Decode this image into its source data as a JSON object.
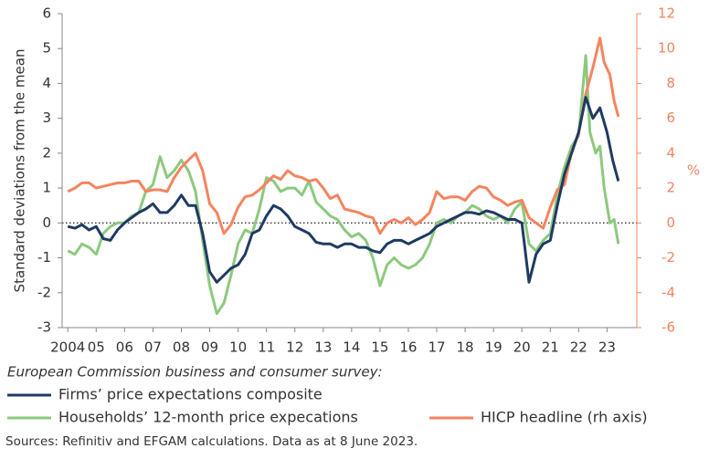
{
  "chart_data": {
    "type": "line",
    "y_label": "Standard deviations from the mean",
    "y2_label": "%",
    "note": "European Commission business and consumer survey:",
    "source": "Sources: Refinitiv and EFGAM calculations. Data as at 8 June 2023.",
    "xlim": [
      2003.8,
      2024.05
    ],
    "xticks": [
      2004,
      {
        "value": 2005,
        "label": "05"
      },
      {
        "value": 2006,
        "label": "06"
      },
      {
        "value": 2007,
        "label": "07"
      },
      {
        "value": 2008,
        "label": "08"
      },
      {
        "value": 2009,
        "label": "09"
      },
      {
        "value": 2010,
        "label": "10"
      },
      {
        "value": 2011,
        "label": "11"
      },
      {
        "value": 2012,
        "label": "12"
      },
      {
        "value": 2013,
        "label": "13"
      },
      {
        "value": 2014,
        "label": "14"
      },
      {
        "value": 2015,
        "label": "15"
      },
      {
        "value": 2016,
        "label": "16"
      },
      {
        "value": 2017,
        "label": "17"
      },
      {
        "value": 2018,
        "label": "18"
      },
      {
        "value": 2019,
        "label": "19"
      },
      {
        "value": 2020,
        "label": "20"
      },
      {
        "value": 2021,
        "label": "21"
      },
      {
        "value": 2022,
        "label": "22"
      },
      {
        "value": 2023,
        "label": "23"
      }
    ],
    "ylim": [
      -3,
      6
    ],
    "yticks": [
      -3,
      -2,
      -1,
      0,
      1,
      2,
      3,
      4,
      5,
      6
    ],
    "y2lim": [
      -6,
      12
    ],
    "y2ticks": [
      -6,
      -4,
      -2,
      0,
      2,
      4,
      6,
      8,
      10,
      12
    ],
    "series": [
      {
        "name": "Firms’ price expectations composite",
        "color": "#1f3a63",
        "x": [
          2004,
          2004.25,
          2004.5,
          2004.75,
          2005,
          2005.25,
          2005.5,
          2005.75,
          2006,
          2006.25,
          2006.5,
          2006.75,
          2007,
          2007.25,
          2007.5,
          2007.75,
          2008,
          2008.25,
          2008.5,
          2008.75,
          2009,
          2009.25,
          2009.5,
          2009.75,
          2010,
          2010.25,
          2010.5,
          2010.75,
          2011,
          2011.25,
          2011.5,
          2011.75,
          2012,
          2012.25,
          2012.5,
          2012.75,
          2013,
          2013.25,
          2013.5,
          2013.75,
          2014,
          2014.25,
          2014.5,
          2014.75,
          2015,
          2015.25,
          2015.5,
          2015.75,
          2016,
          2016.25,
          2016.5,
          2016.75,
          2017,
          2017.25,
          2017.5,
          2017.75,
          2018,
          2018.25,
          2018.5,
          2018.75,
          2019,
          2019.25,
          2019.5,
          2019.75,
          2020,
          2020.25,
          2020.5,
          2020.75,
          2021,
          2021.25,
          2021.5,
          2021.75,
          2022,
          2022.25,
          2022.5,
          2022.75,
          2023,
          2023.2,
          2023.4
        ],
        "values": [
          -0.1,
          -0.15,
          -0.05,
          -0.2,
          -0.1,
          -0.45,
          -0.5,
          -0.2,
          0,
          0.15,
          0.3,
          0.4,
          0.55,
          0.3,
          0.3,
          0.5,
          0.8,
          0.5,
          0.5,
          -0.3,
          -1.4,
          -1.7,
          -1.5,
          -1.3,
          -1.2,
          -0.9,
          -0.3,
          -0.2,
          0.2,
          0.5,
          0.4,
          0.2,
          -0.1,
          -0.2,
          -0.3,
          -0.55,
          -0.6,
          -0.6,
          -0.7,
          -0.6,
          -0.6,
          -0.7,
          -0.7,
          -0.8,
          -0.85,
          -0.6,
          -0.5,
          -0.5,
          -0.6,
          -0.5,
          -0.4,
          -0.3,
          -0.1,
          0,
          0.1,
          0.2,
          0.3,
          0.3,
          0.25,
          0.35,
          0.3,
          0.2,
          0.1,
          0.1,
          0,
          -1.7,
          -0.9,
          -0.6,
          -0.5,
          0.5,
          1.4,
          2,
          2.6,
          3.6,
          3,
          3.3,
          2.6,
          1.8,
          1.2
        ]
      },
      {
        "name": "Households’ 12-month price expecations",
        "color": "#8cc97e",
        "x": [
          2004,
          2004.25,
          2004.5,
          2004.75,
          2005,
          2005.25,
          2005.5,
          2005.75,
          2006,
          2006.25,
          2006.5,
          2006.75,
          2007,
          2007.25,
          2007.5,
          2007.75,
          2008,
          2008.25,
          2008.5,
          2008.75,
          2009,
          2009.25,
          2009.5,
          2009.75,
          2010,
          2010.25,
          2010.5,
          2010.75,
          2011,
          2011.25,
          2011.5,
          2011.75,
          2012,
          2012.25,
          2012.5,
          2012.75,
          2013,
          2013.25,
          2013.5,
          2013.75,
          2014,
          2014.25,
          2014.5,
          2014.75,
          2015,
          2015.25,
          2015.5,
          2015.75,
          2016,
          2016.25,
          2016.5,
          2016.75,
          2017,
          2017.25,
          2017.5,
          2017.75,
          2018,
          2018.25,
          2018.5,
          2018.75,
          2019,
          2019.25,
          2019.5,
          2019.75,
          2020,
          2020.25,
          2020.5,
          2020.75,
          2021,
          2021.25,
          2021.5,
          2021.75,
          2022,
          2022.25,
          2022.4,
          2022.6,
          2022.75,
          2022.9,
          2023.1,
          2023.25,
          2023.4
        ],
        "values": [
          -0.8,
          -0.9,
          -0.6,
          -0.7,
          -0.9,
          -0.3,
          -0.1,
          0,
          0,
          0.2,
          0.3,
          0.9,
          1.1,
          1.9,
          1.3,
          1.5,
          1.8,
          1.5,
          0.9,
          -0.5,
          -1.8,
          -2.6,
          -2.3,
          -1.5,
          -0.6,
          -0.2,
          -0.3,
          0.4,
          1.3,
          1.2,
          0.9,
          1,
          1,
          0.8,
          1.2,
          0.6,
          0.4,
          0.2,
          0.1,
          -0.2,
          -0.4,
          -0.3,
          -0.5,
          -1,
          -1.8,
          -1.2,
          -1,
          -1.2,
          -1.3,
          -1.2,
          -1,
          -0.6,
          0,
          0.1,
          0,
          0.2,
          0.3,
          0.5,
          0.4,
          0.2,
          0.1,
          0.2,
          0,
          0.4,
          0.6,
          -0.6,
          -0.8,
          -0.5,
          -0.3,
          0.8,
          1.6,
          2.2,
          2.5,
          4.8,
          2.6,
          2,
          2.2,
          1,
          0,
          0.1,
          -0.6
        ]
      },
      {
        "name": "HICP headline (rh axis)",
        "color": "#f4845f",
        "axis": "y2",
        "x": [
          2004,
          2004.25,
          2004.5,
          2004.75,
          2005,
          2005.25,
          2005.5,
          2005.75,
          2006,
          2006.25,
          2006.5,
          2006.75,
          2007,
          2007.25,
          2007.5,
          2007.75,
          2008,
          2008.25,
          2008.5,
          2008.75,
          2009,
          2009.25,
          2009.5,
          2009.75,
          2010,
          2010.25,
          2010.5,
          2010.75,
          2011,
          2011.25,
          2011.5,
          2011.75,
          2012,
          2012.25,
          2012.5,
          2012.75,
          2013,
          2013.25,
          2013.5,
          2013.75,
          2014,
          2014.25,
          2014.5,
          2014.75,
          2015,
          2015.25,
          2015.5,
          2015.75,
          2016,
          2016.25,
          2016.5,
          2016.75,
          2017,
          2017.25,
          2017.5,
          2017.75,
          2018,
          2018.25,
          2018.5,
          2018.75,
          2019,
          2019.25,
          2019.5,
          2019.75,
          2020,
          2020.25,
          2020.5,
          2020.75,
          2021,
          2021.25,
          2021.5,
          2021.75,
          2022,
          2022.25,
          2022.5,
          2022.75,
          2022.9,
          2023.1,
          2023.25,
          2023.4
        ],
        "values": [
          1.8,
          2,
          2.3,
          2.3,
          2,
          2.1,
          2.2,
          2.3,
          2.3,
          2.4,
          2.4,
          1.8,
          1.9,
          1.9,
          1.8,
          2.6,
          3.2,
          3.6,
          4,
          3,
          1.1,
          0.6,
          -0.6,
          -0.1,
          0.9,
          1.5,
          1.6,
          1.9,
          2.3,
          2.7,
          2.5,
          3,
          2.7,
          2.6,
          2.4,
          2.5,
          2,
          1.4,
          1.6,
          0.8,
          0.7,
          0.6,
          0.4,
          0.3,
          -0.6,
          0,
          0.2,
          0,
          0.3,
          -0.1,
          0.2,
          0.6,
          1.8,
          1.4,
          1.5,
          1.5,
          1.3,
          1.8,
          2.1,
          2,
          1.5,
          1.3,
          1,
          1.2,
          1.3,
          0.3,
          0,
          -0.3,
          0.9,
          1.9,
          2.2,
          4.1,
          5.1,
          7.4,
          8.9,
          10.6,
          9.2,
          8.5,
          7,
          6.1
        ]
      }
    ]
  }
}
